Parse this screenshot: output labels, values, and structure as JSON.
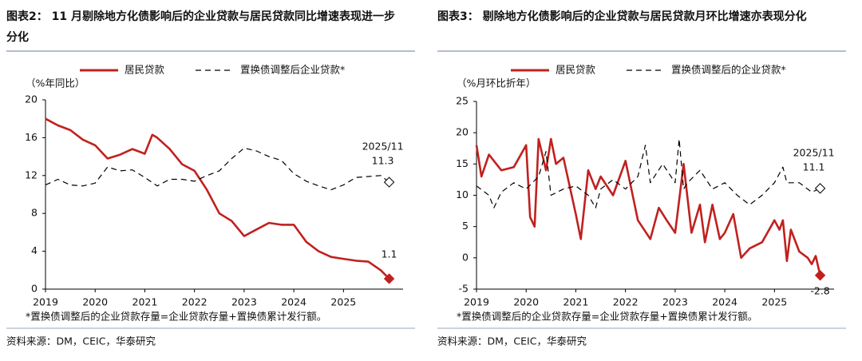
{
  "chart_data": [
    {
      "type": "line",
      "title": "图表2： 11 月剔除地方化债影响后的企业贷款与居民贷款同比增速表现进一步分化",
      "unit_label": "（%年同比）",
      "annotation": "2025/11",
      "note": "*置换债调整后的企业贷款存量=企业贷款存量+置换债累计发行额。",
      "source": "资料来源：DM，CEIC，华泰研究",
      "xlim": [
        2019,
        2026.2
      ],
      "xticks": [
        2019,
        2020,
        2021,
        2022,
        2023,
        2024,
        2025
      ],
      "ylim": [
        0,
        20
      ],
      "yticks": [
        0,
        4,
        8,
        12,
        16,
        20
      ],
      "series": [
        {
          "name": "居民贷款",
          "color": "#c0211f",
          "dash": false,
          "end_marker": "filled",
          "x": [
            2019.0,
            2019.25,
            2019.5,
            2019.75,
            2020.0,
            2020.25,
            2020.5,
            2020.75,
            2021.0,
            2021.15,
            2021.25,
            2021.5,
            2021.75,
            2022.0,
            2022.25,
            2022.5,
            2022.75,
            2023.0,
            2023.25,
            2023.5,
            2023.75,
            2024.0,
            2024.25,
            2024.5,
            2024.75,
            2025.0,
            2025.25,
            2025.5,
            2025.75,
            2025.92
          ],
          "values": [
            18.0,
            17.3,
            16.8,
            15.8,
            15.2,
            13.8,
            14.2,
            14.8,
            14.3,
            16.3,
            16.0,
            14.8,
            13.2,
            12.5,
            10.5,
            8.0,
            7.2,
            5.6,
            6.3,
            7.0,
            6.8,
            6.8,
            5.0,
            4.0,
            3.4,
            3.2,
            3.0,
            2.9,
            2.0,
            1.1
          ]
        },
        {
          "name": "置换债调整后企业贷款*",
          "color": "#000000",
          "dash": true,
          "end_marker": "hollow",
          "x": [
            2019.0,
            2019.25,
            2019.5,
            2019.75,
            2020.0,
            2020.25,
            2020.5,
            2020.75,
            2021.0,
            2021.25,
            2021.5,
            2021.75,
            2022.0,
            2022.25,
            2022.5,
            2022.75,
            2023.0,
            2023.25,
            2023.5,
            2023.75,
            2024.0,
            2024.25,
            2024.5,
            2024.75,
            2025.0,
            2025.25,
            2025.5,
            2025.75,
            2025.92
          ],
          "values": [
            11.0,
            11.6,
            11.0,
            10.9,
            11.2,
            12.9,
            12.5,
            12.6,
            11.8,
            10.9,
            11.6,
            11.6,
            11.4,
            12.0,
            12.5,
            13.8,
            14.9,
            14.6,
            14.0,
            13.6,
            12.2,
            11.4,
            10.9,
            10.5,
            11.0,
            11.8,
            11.9,
            12.0,
            11.3
          ]
        }
      ]
    },
    {
      "type": "line",
      "title": "图表3： 剔除地方化债影响后的企业贷款与居民贷款月环比增速亦表现分化",
      "unit_label": "（%月环比折年）",
      "annotation": "2025/11",
      "note": "*置换债调整后的企业贷款存量=企业贷款存量+置换债累计发行额。",
      "source": "资料来源：DM，CEIC，华泰研究",
      "xlim": [
        2019,
        2026.2
      ],
      "xticks": [
        2019,
        2020,
        2021,
        2022,
        2023,
        2024,
        2025
      ],
      "ylim": [
        -5,
        25
      ],
      "yticks": [
        -5,
        0,
        5,
        10,
        15,
        20,
        25
      ],
      "series": [
        {
          "name": "居民贷款",
          "color": "#c0211f",
          "dash": false,
          "end_marker": "filled",
          "x": [
            2019.0,
            2019.1,
            2019.25,
            2019.5,
            2019.75,
            2020.0,
            2020.08,
            2020.17,
            2020.25,
            2020.4,
            2020.5,
            2020.6,
            2020.75,
            2021.0,
            2021.1,
            2021.25,
            2021.4,
            2021.5,
            2021.75,
            2022.0,
            2022.25,
            2022.5,
            2022.67,
            2022.83,
            2023.0,
            2023.17,
            2023.33,
            2023.5,
            2023.6,
            2023.75,
            2023.9,
            2024.0,
            2024.17,
            2024.33,
            2024.5,
            2024.75,
            2025.0,
            2025.1,
            2025.17,
            2025.25,
            2025.33,
            2025.5,
            2025.67,
            2025.75,
            2025.83,
            2025.92
          ],
          "values": [
            18,
            13,
            16.5,
            14,
            14.5,
            18,
            6.5,
            5,
            19,
            14,
            19,
            15,
            16,
            7,
            3,
            14,
            11,
            13,
            10,
            15.5,
            6,
            3,
            8,
            6,
            4,
            15,
            4,
            8.5,
            2.5,
            8.5,
            3,
            4,
            7,
            0,
            1.5,
            2.5,
            6,
            4.5,
            6,
            -0.5,
            4.5,
            1,
            0,
            -1,
            0.3,
            -2.8
          ]
        },
        {
          "name": "置换债调整后的企业贷款*",
          "color": "#000000",
          "dash": true,
          "end_marker": "hollow",
          "x": [
            2019.0,
            2019.25,
            2019.35,
            2019.5,
            2019.75,
            2020.0,
            2020.25,
            2020.4,
            2020.5,
            2020.75,
            2021.0,
            2021.25,
            2021.4,
            2021.5,
            2021.75,
            2022.0,
            2022.25,
            2022.4,
            2022.5,
            2022.75,
            2023.0,
            2023.08,
            2023.17,
            2023.25,
            2023.5,
            2023.75,
            2024.0,
            2024.25,
            2024.5,
            2024.75,
            2025.0,
            2025.17,
            2025.25,
            2025.5,
            2025.75,
            2025.92
          ],
          "values": [
            11.5,
            10,
            8,
            10.5,
            12,
            11,
            13,
            17,
            10,
            11,
            11.5,
            10,
            8,
            11,
            12.5,
            11,
            13,
            18,
            12,
            15,
            12,
            19,
            11,
            12,
            14,
            11,
            12,
            10,
            8.5,
            10,
            12,
            14.5,
            12,
            12,
            10.5,
            11.1
          ]
        }
      ]
    }
  ]
}
